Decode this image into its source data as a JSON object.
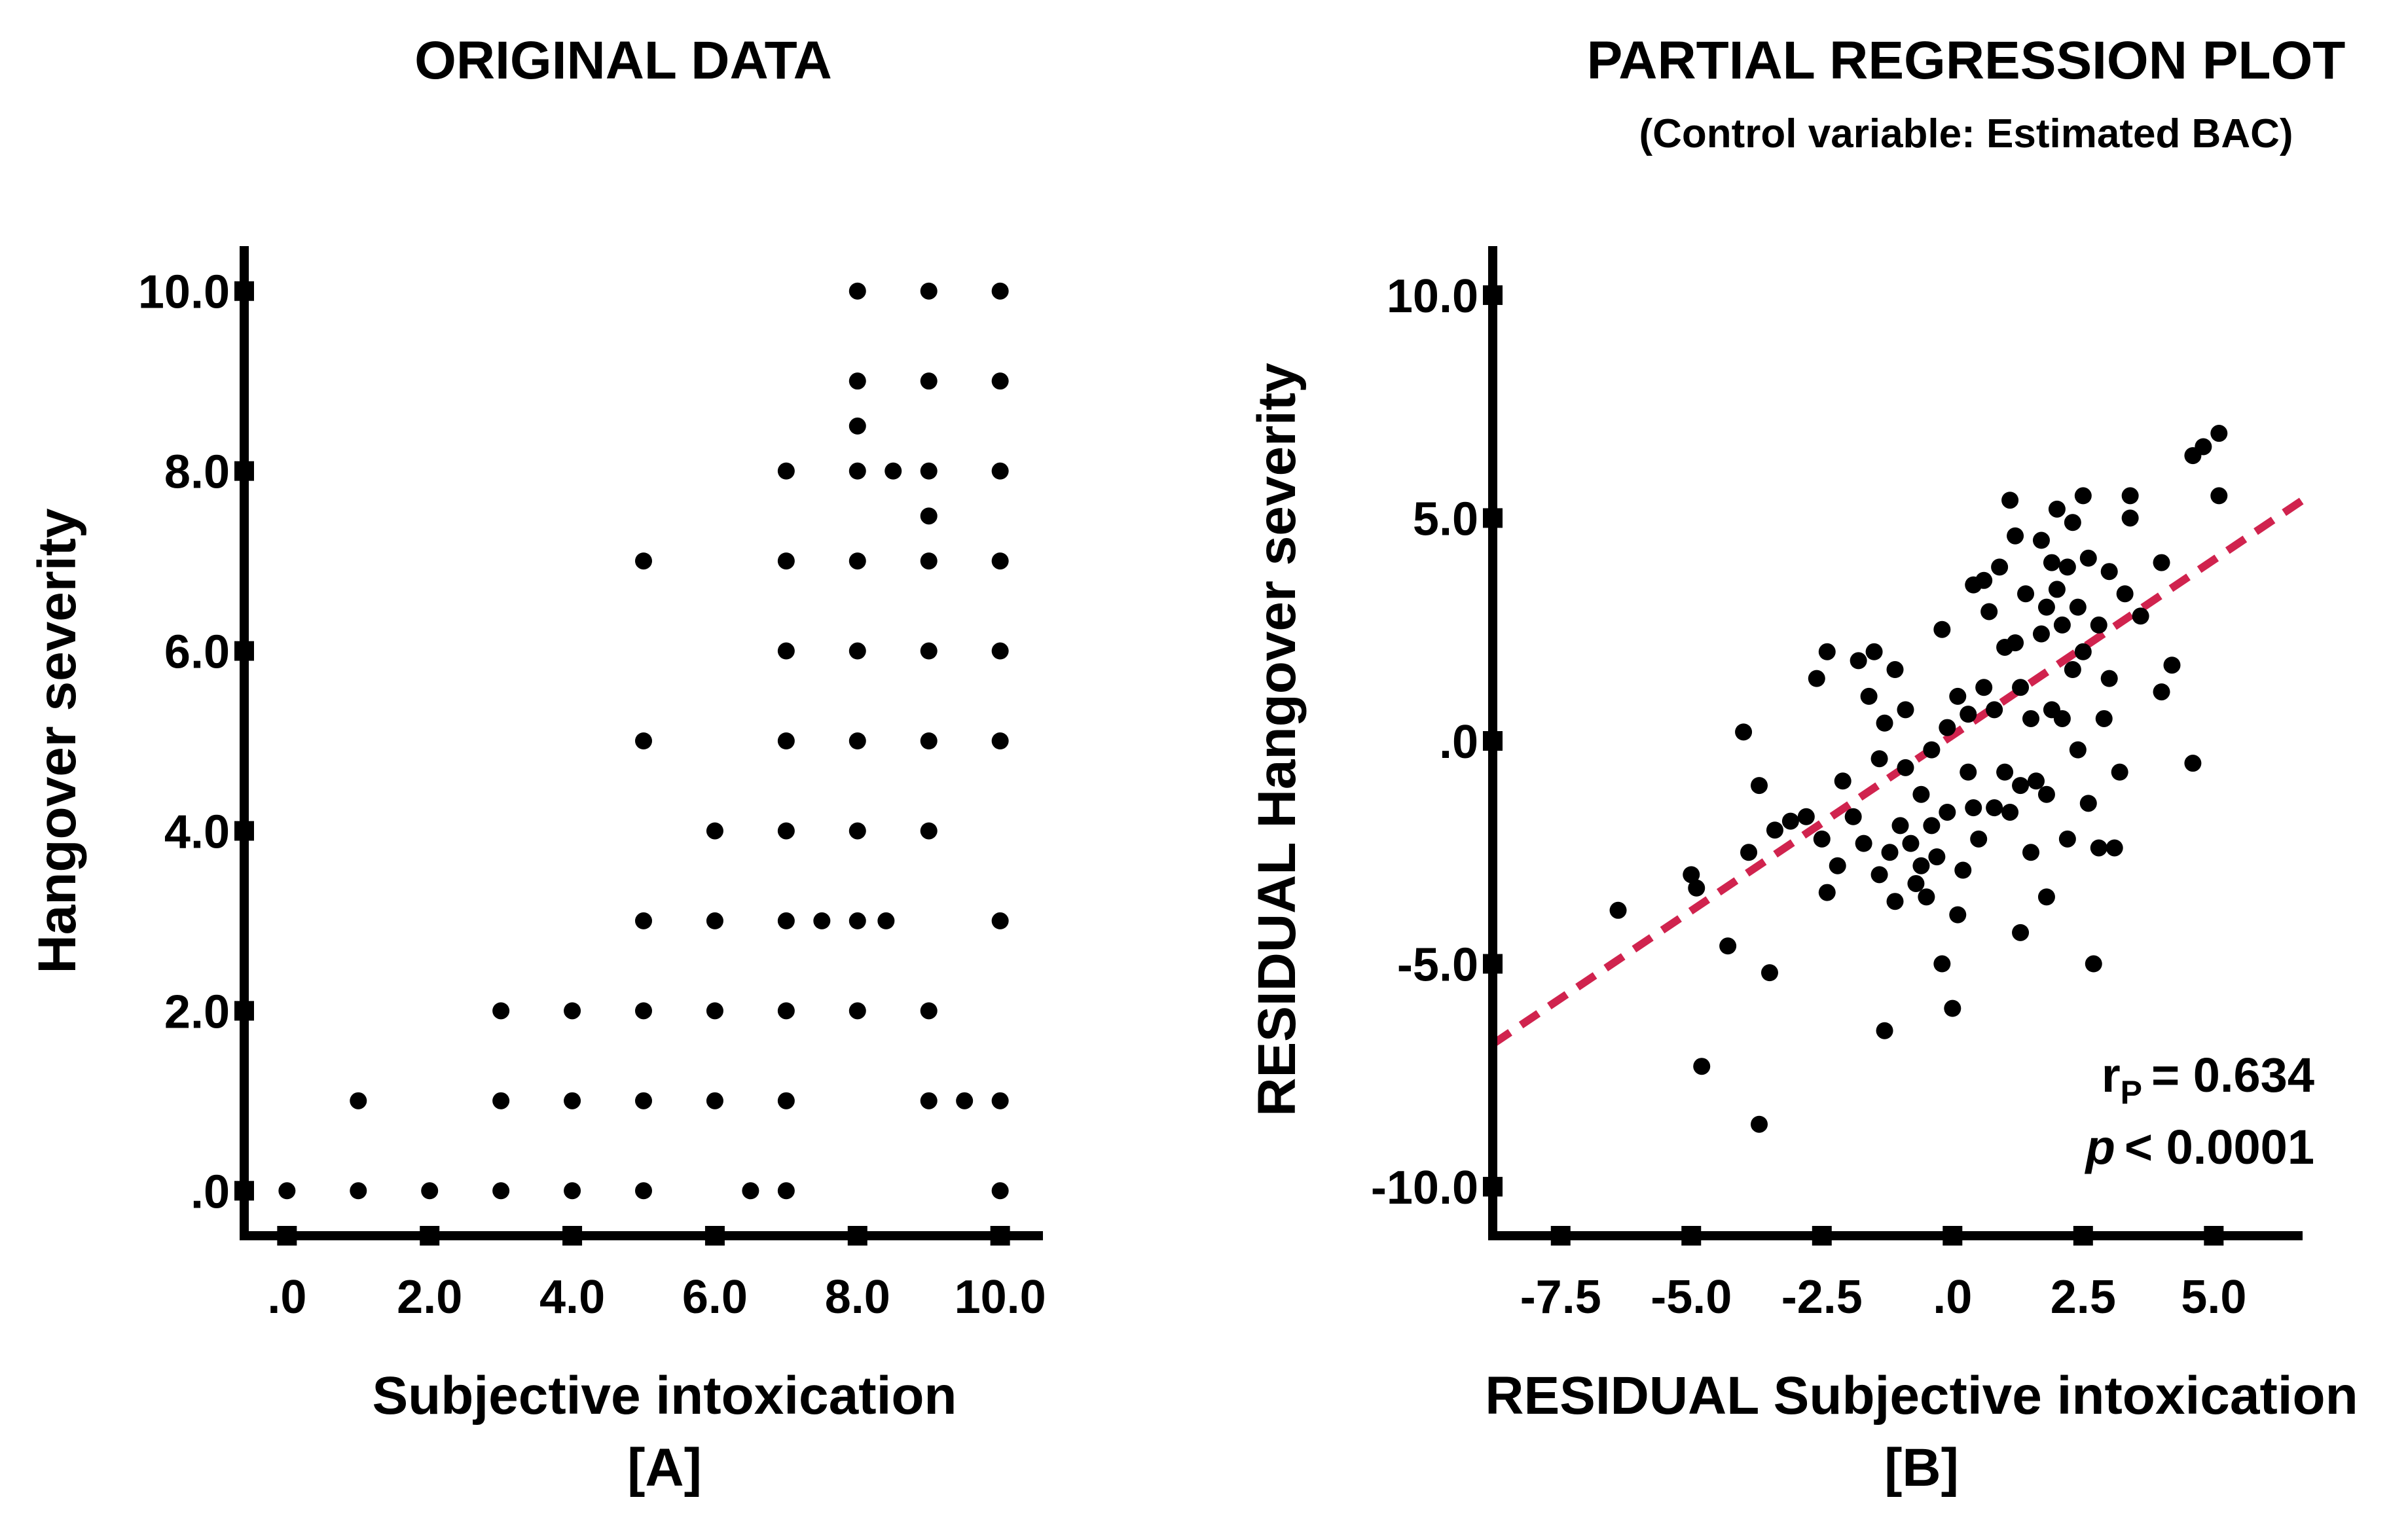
{
  "chart_data": [
    {
      "panel": "A",
      "type": "scatter",
      "title": "ORIGINAL DATA",
      "xlabel": "Subjective intoxication",
      "ylabel": "Hangover severity",
      "panel_label": "[A]",
      "xlim": [
        -0.6,
        10.6
      ],
      "ylim": [
        -0.5,
        10.5
      ],
      "xticks": [
        0,
        2,
        4,
        6,
        8,
        10
      ],
      "yticks": [
        0,
        2,
        4,
        6,
        8,
        10
      ],
      "xtick_labels": [
        ".0",
        "2.0",
        "4.0",
        "6.0",
        "8.0",
        "10.0"
      ],
      "ytick_labels": [
        ".0",
        "2.0",
        "4.0",
        "6.0",
        "8.0",
        "10.0"
      ],
      "points": [
        [
          0,
          0
        ],
        [
          1,
          0
        ],
        [
          2,
          0
        ],
        [
          3,
          0
        ],
        [
          4,
          0
        ],
        [
          5,
          0
        ],
        [
          6.5,
          0
        ],
        [
          7,
          0
        ],
        [
          10,
          0
        ],
        [
          1,
          1
        ],
        [
          3,
          1
        ],
        [
          4,
          1
        ],
        [
          5,
          1
        ],
        [
          6,
          1
        ],
        [
          7,
          1
        ],
        [
          9,
          1
        ],
        [
          9.5,
          1
        ],
        [
          10,
          1
        ],
        [
          3,
          2
        ],
        [
          4,
          2
        ],
        [
          5,
          2
        ],
        [
          6,
          2
        ],
        [
          7,
          2
        ],
        [
          8,
          2
        ],
        [
          9,
          2
        ],
        [
          5,
          3
        ],
        [
          6,
          3
        ],
        [
          7,
          3
        ],
        [
          7.5,
          3
        ],
        [
          8,
          3
        ],
        [
          8.4,
          3
        ],
        [
          10,
          3
        ],
        [
          6,
          4
        ],
        [
          7,
          4
        ],
        [
          8,
          4
        ],
        [
          9,
          4
        ],
        [
          5,
          5
        ],
        [
          7,
          5
        ],
        [
          8,
          5
        ],
        [
          9,
          5
        ],
        [
          10,
          5
        ],
        [
          7,
          6
        ],
        [
          8,
          6
        ],
        [
          9,
          6
        ],
        [
          10,
          6
        ],
        [
          5,
          7
        ],
        [
          7,
          7
        ],
        [
          8,
          7
        ],
        [
          9,
          7
        ],
        [
          10,
          7
        ],
        [
          9,
          7.5
        ],
        [
          7,
          8
        ],
        [
          8,
          8
        ],
        [
          8.5,
          8
        ],
        [
          9,
          8
        ],
        [
          10,
          8
        ],
        [
          8,
          8.5
        ],
        [
          8,
          9
        ],
        [
          9,
          9
        ],
        [
          10,
          9
        ],
        [
          8,
          10
        ],
        [
          9,
          10
        ],
        [
          10,
          10
        ]
      ]
    },
    {
      "panel": "B",
      "type": "scatter",
      "title": "PARTIAL REGRESSION PLOT",
      "subtitle": "(Control variable: Estimated BAC)",
      "xlabel": "RESIDUAL Subjective intoxication",
      "ylabel": "RESIDUAL Hangover severity",
      "panel_label": "[B]",
      "xlim": [
        -8.8,
        6.7
      ],
      "ylim": [
        -11.1,
        11.1
      ],
      "xticks": [
        -7.5,
        -5,
        -2.5,
        0,
        2.5,
        5
      ],
      "yticks": [
        10,
        5,
        0,
        -5,
        -10
      ],
      "xtick_labels": [
        "-7.5",
        "-5.0",
        "-2.5",
        ".0",
        "2.5",
        "5.0"
      ],
      "ytick_labels": [
        "10.0",
        "5.0",
        ".0",
        "-5.0",
        "-10.0"
      ],
      "fit_line": {
        "x": [
          -8.8,
          6.7
        ],
        "y": [
          -6.8,
          5.4
        ],
        "style": "dashed",
        "color": "#d0234e"
      },
      "stats": {
        "r_label": "r",
        "r_sub": "P",
        "r_value": "= 0.634",
        "p_label": "p",
        "p_value": "< 0.0001"
      },
      "points": [
        [
          -6.4,
          -3.8
        ],
        [
          -5.0,
          -3.0
        ],
        [
          -4.9,
          -3.3
        ],
        [
          -4.3,
          -4.6
        ],
        [
          -4.0,
          0.2
        ],
        [
          -3.9,
          -2.5
        ],
        [
          -3.7,
          -1.0
        ],
        [
          -3.5,
          -5.2
        ],
        [
          -3.4,
          -2.0
        ],
        [
          -3.1,
          -1.8
        ],
        [
          -2.8,
          -1.7
        ],
        [
          -2.6,
          1.4
        ],
        [
          -2.5,
          -2.2
        ],
        [
          -2.4,
          2.0
        ],
        [
          -2.4,
          -3.4
        ],
        [
          -2.2,
          -2.8
        ],
        [
          -2.1,
          -0.9
        ],
        [
          -1.9,
          -1.7
        ],
        [
          -1.8,
          1.8
        ],
        [
          -1.7,
          -2.3
        ],
        [
          -1.6,
          1.0
        ],
        [
          -1.5,
          2.0
        ],
        [
          -1.4,
          -0.4
        ],
        [
          -1.4,
          -3.0
        ],
        [
          -1.3,
          0.4
        ],
        [
          -1.2,
          -2.5
        ],
        [
          -1.1,
          1.6
        ],
        [
          -1.1,
          -3.6
        ],
        [
          -1.0,
          -1.9
        ],
        [
          -0.9,
          0.7
        ],
        [
          -0.9,
          -0.6
        ],
        [
          -0.8,
          -2.3
        ],
        [
          -0.7,
          -3.2
        ],
        [
          -0.6,
          -2.8
        ],
        [
          -0.6,
          -1.2
        ],
        [
          -0.5,
          -3.5
        ],
        [
          -0.4,
          -1.9
        ],
        [
          -0.4,
          -0.2
        ],
        [
          -0.3,
          -2.6
        ],
        [
          -0.2,
          2.5
        ],
        [
          -0.2,
          -5.0
        ],
        [
          -0.1,
          0.3
        ],
        [
          -0.1,
          -1.6
        ],
        [
          0.0,
          -6.0
        ],
        [
          0.1,
          1.0
        ],
        [
          0.1,
          -3.9
        ],
        [
          0.2,
          -2.9
        ],
        [
          0.3,
          0.6
        ],
        [
          0.3,
          -0.7
        ],
        [
          0.4,
          3.5
        ],
        [
          0.4,
          -1.5
        ],
        [
          0.5,
          -2.2
        ],
        [
          0.6,
          1.2
        ],
        [
          0.6,
          3.6
        ],
        [
          0.7,
          2.9
        ],
        [
          0.8,
          0.7
        ],
        [
          0.8,
          -1.5
        ],
        [
          0.9,
          3.9
        ],
        [
          1.0,
          2.1
        ],
        [
          1.0,
          -0.7
        ],
        [
          1.1,
          -1.6
        ],
        [
          1.1,
          5.4
        ],
        [
          1.2,
          4.6
        ],
        [
          1.2,
          2.2
        ],
        [
          1.3,
          1.2
        ],
        [
          1.3,
          -1.0
        ],
        [
          1.3,
          -4.3
        ],
        [
          1.4,
          3.3
        ],
        [
          1.5,
          0.5
        ],
        [
          1.5,
          -2.5
        ],
        [
          1.6,
          -0.9
        ],
        [
          1.7,
          4.5
        ],
        [
          1.7,
          2.4
        ],
        [
          1.8,
          3.0
        ],
        [
          1.8,
          -1.2
        ],
        [
          1.8,
          -3.5
        ],
        [
          1.9,
          4.0
        ],
        [
          1.9,
          0.7
        ],
        [
          2.0,
          5.2
        ],
        [
          2.0,
          3.4
        ],
        [
          2.1,
          2.6
        ],
        [
          2.1,
          0.5
        ],
        [
          2.2,
          3.9
        ],
        [
          2.2,
          -2.2
        ],
        [
          2.3,
          4.9
        ],
        [
          2.3,
          1.6
        ],
        [
          2.4,
          3.0
        ],
        [
          2.4,
          -0.2
        ],
        [
          2.5,
          5.5
        ],
        [
          2.5,
          2.0
        ],
        [
          2.6,
          4.1
        ],
        [
          2.6,
          -1.4
        ],
        [
          2.7,
          -5.0
        ],
        [
          2.8,
          2.6
        ],
        [
          2.8,
          -2.4
        ],
        [
          2.9,
          0.5
        ],
        [
          3.0,
          3.8
        ],
        [
          3.0,
          1.4
        ],
        [
          3.1,
          -2.4
        ],
        [
          3.2,
          -0.7
        ],
        [
          3.3,
          3.3
        ],
        [
          3.4,
          5.0
        ],
        [
          3.6,
          2.8
        ],
        [
          4.0,
          1.1
        ],
        [
          4.2,
          1.7
        ],
        [
          4.6,
          6.4
        ],
        [
          4.8,
          6.6
        ],
        [
          5.1,
          6.9
        ],
        [
          5.1,
          5.5
        ],
        [
          4.6,
          -0.5
        ],
        [
          -4.8,
          -7.3
        ],
        [
          -3.7,
          -8.6
        ],
        [
          -1.3,
          -6.5
        ],
        [
          4.0,
          4.0
        ],
        [
          3.4,
          5.5
        ]
      ]
    }
  ]
}
